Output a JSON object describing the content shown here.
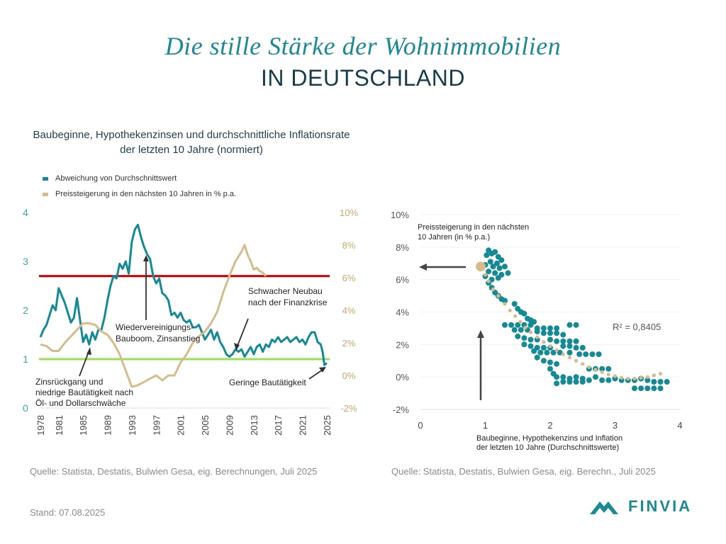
{
  "header": {
    "title": "Die stille Stärke der Wohnimmobilien",
    "subtitle": "IN DEUTSCHLAND"
  },
  "footer": {
    "source_left": "Quelle: Statista, Destatis, Bulwien Gesa, eig. Berechnungen, Juli 2025",
    "source_right": "Quelle: Statista, Destatis, Bulwien Gesa, eig. Berechn., Juli 2025",
    "stand": "Stand: 07.08.2025",
    "logo_text": "FINVIA"
  },
  "colors": {
    "teal": "#138a95",
    "tan": "#d8bb8b",
    "red": "#c00000",
    "green": "#99e05a",
    "dark": "#333333",
    "grid": "#e6e6e6"
  },
  "chart_data": [
    {
      "type": "line",
      "title": "Baubeginne, Hypothekenzinsen und durchschnittliche Inflationsrate der letzten 10 Jahre (normiert)",
      "legend": [
        {
          "name": "Abweichung von Durchschnittswert",
          "color": "#138a95"
        },
        {
          "name": "Preissteigerung in den nächsten 10 Jahren in % p.a.",
          "color": "#d8bb8b"
        }
      ],
      "legend_position": "top-left",
      "x_ticks": [
        "1978",
        "1981",
        "1985",
        "1989",
        "1993",
        "1997",
        "2001",
        "2005",
        "2009",
        "2013",
        "2017",
        "2021",
        "2025"
      ],
      "xlim": [
        1978,
        2025
      ],
      "y_left": {
        "ticks": [
          "0",
          "1",
          "2",
          "3",
          "4"
        ],
        "lim": [
          0,
          4
        ]
      },
      "y_right": {
        "ticks": [
          "-2%",
          "0%",
          "2%",
          "4%",
          "6%",
          "8%",
          "10%"
        ],
        "lim": [
          -2,
          10
        ]
      },
      "reference_lines": [
        {
          "name": "upper-threshold",
          "axis": "left",
          "value": 2.7,
          "color": "#c00000"
        },
        {
          "name": "lower-threshold",
          "axis": "left",
          "value": 1.0,
          "color": "#99e05a"
        }
      ],
      "series": [
        {
          "name": "Abweichung von Durchschnittswert",
          "axis": "left",
          "x": [
            1978.0,
            1978.5,
            1979.0,
            1979.5,
            1980.0,
            1980.5,
            1981.0,
            1981.5,
            1982.0,
            1982.5,
            1983.0,
            1983.5,
            1984.0,
            1984.5,
            1985.0,
            1985.5,
            1986.0,
            1986.5,
            1987.0,
            1987.5,
            1988.0,
            1988.5,
            1989.0,
            1989.5,
            1990.0,
            1990.5,
            1991.0,
            1991.5,
            1992.0,
            1992.5,
            1993.0,
            1993.5,
            1994.0,
            1994.5,
            1995.0,
            1995.5,
            1996.0,
            1996.5,
            1997.0,
            1997.5,
            1998.0,
            1998.5,
            1999.0,
            1999.5,
            2000.0,
            2000.5,
            2001.0,
            2001.5,
            2002.0,
            2002.5,
            2003.0,
            2003.5,
            2004.0,
            2004.5,
            2005.0,
            2005.5,
            2006.0,
            2006.5,
            2007.0,
            2007.5,
            2008.0,
            2008.5,
            2009.0,
            2009.5,
            2010.0,
            2010.5,
            2011.0,
            2011.5,
            2012.0,
            2012.5,
            2013.0,
            2013.5,
            2014.0,
            2014.5,
            2015.0,
            2015.5,
            2016.0,
            2016.5,
            2017.0,
            2017.5,
            2018.0,
            2018.5,
            2019.0,
            2019.5,
            2020.0,
            2020.5,
            2021.0,
            2021.5,
            2022.0,
            2022.5,
            2023.0,
            2023.5,
            2024.0,
            2024.3,
            2024.6,
            2025.0
          ],
          "y": [
            1.45,
            1.6,
            1.7,
            1.9,
            2.1,
            2.0,
            2.45,
            2.3,
            2.15,
            1.95,
            1.75,
            1.85,
            2.25,
            1.8,
            1.35,
            1.5,
            1.3,
            1.55,
            1.4,
            1.6,
            1.6,
            1.85,
            2.2,
            2.5,
            2.7,
            2.65,
            2.95,
            2.85,
            3.0,
            2.75,
            3.4,
            3.65,
            3.75,
            3.5,
            3.3,
            3.15,
            3.05,
            2.7,
            2.55,
            2.65,
            2.35,
            2.3,
            2.2,
            1.9,
            1.95,
            1.85,
            1.95,
            1.8,
            1.75,
            1.8,
            1.65,
            1.65,
            1.7,
            1.55,
            1.4,
            1.5,
            1.6,
            1.4,
            1.55,
            1.35,
            1.25,
            1.1,
            1.05,
            1.1,
            1.2,
            1.15,
            1.2,
            1.05,
            1.15,
            1.25,
            1.1,
            1.25,
            1.3,
            1.15,
            1.3,
            1.25,
            1.4,
            1.35,
            1.45,
            1.35,
            1.4,
            1.45,
            1.35,
            1.4,
            1.45,
            1.35,
            1.4,
            1.3,
            1.45,
            1.55,
            1.55,
            1.35,
            1.3,
            1.15,
            0.88,
            0.92
          ]
        },
        {
          "name": "Preissteigerung in den nächsten 10 Jahren in % p.a.",
          "axis": "right",
          "x": [
            1978.0,
            1979.0,
            1980.0,
            1981.0,
            1982.0,
            1983.0,
            1984.0,
            1985.0,
            1986.0,
            1987.0,
            1988.0,
            1989.0,
            1990.0,
            1991.0,
            1992.0,
            1993.0,
            1994.0,
            1995.0,
            1996.0,
            1997.0,
            1998.0,
            1999.0,
            2000.0,
            2001.0,
            2002.0,
            2003.0,
            2004.0,
            2005.0,
            2006.0,
            2007.0,
            2008.0,
            2009.0,
            2010.0,
            2011.0,
            2011.5,
            2012.0,
            2012.5,
            2013.0,
            2013.5,
            2014.0,
            2014.5,
            2015.0
          ],
          "y": [
            1.9,
            1.8,
            1.5,
            1.5,
            2.0,
            2.4,
            2.8,
            3.2,
            3.2,
            3.1,
            2.7,
            2.5,
            2.0,
            1.3,
            0.3,
            -0.7,
            -0.6,
            -0.4,
            -0.2,
            0.0,
            -0.3,
            0.0,
            0.0,
            0.8,
            1.3,
            2.0,
            2.4,
            2.7,
            3.2,
            3.9,
            5.1,
            6.1,
            7.0,
            7.6,
            8.0,
            7.4,
            7.0,
            6.5,
            6.6,
            6.4,
            6.3,
            6.1
          ]
        }
      ],
      "annotations": [
        {
          "text": "Wiedervereinigungs-\nBauboom, Zinsanstieg",
          "points_to": {
            "x": 1993.8,
            "y": 3.1
          }
        },
        {
          "text": "Zinsrückgang und\nniedrige Bautätigkeit nach\nÖl- und Dollarschwäche",
          "points_to": {
            "x": 1985.3,
            "y": 1.3
          }
        },
        {
          "text": "Schwacher Neubau\nnach der Finanzkrise",
          "points_to": {
            "x": 2009.8,
            "y": 1.15
          }
        },
        {
          "text": "Geringe Bautätigkeit",
          "points_to": {
            "x": 2024.9,
            "y": 0.88
          }
        }
      ],
      "grid": false
    },
    {
      "type": "scatter",
      "xlabel": "Baubeginne, Hypothekenzins und Inflation\nder letzten 10 Jahre (Durchschnittswerte)",
      "ylabel": "",
      "xlim": [
        0,
        4
      ],
      "ylim": [
        -2,
        10
      ],
      "x_ticks": [
        "0",
        "1",
        "2",
        "3",
        "4"
      ],
      "y_ticks": [
        "-2%",
        "0%",
        "2%",
        "4%",
        "6%",
        "8%",
        "10%"
      ],
      "grid": true,
      "r_squared_label": "R² = 0,8405",
      "annotations": [
        {
          "text": "Preissteigerung in den nächsten\n10 Jahren (in % p.a.)",
          "arrow": "left",
          "at_y": 6.8
        },
        {
          "text": "",
          "arrow": "up",
          "at_x": 0.93
        }
      ],
      "highlight_point": {
        "x": 0.93,
        "y": 6.8
      },
      "series": [
        {
          "name": "Beobachtungen",
          "color": "#138a95",
          "points": [
            [
              1.05,
              7.8
            ],
            [
              1.1,
              7.6
            ],
            [
              1.02,
              7.5
            ],
            [
              1.15,
              7.7
            ],
            [
              1.2,
              7.4
            ],
            [
              1.08,
              7.1
            ],
            [
              1.18,
              7.0
            ],
            [
              1.25,
              7.2
            ],
            [
              1.0,
              6.9
            ],
            [
              1.12,
              6.8
            ],
            [
              1.22,
              6.7
            ],
            [
              1.3,
              6.8
            ],
            [
              1.05,
              6.5
            ],
            [
              1.15,
              6.4
            ],
            [
              1.25,
              6.3
            ],
            [
              1.35,
              6.4
            ],
            [
              1.0,
              6.2
            ],
            [
              1.1,
              6.0
            ],
            [
              1.2,
              6.1
            ],
            [
              1.05,
              5.8
            ],
            [
              1.1,
              5.5
            ],
            [
              1.15,
              5.2
            ],
            [
              1.2,
              5.0
            ],
            [
              1.25,
              4.8
            ],
            [
              1.3,
              4.7
            ],
            [
              1.45,
              4.5
            ],
            [
              1.5,
              4.2
            ],
            [
              1.55,
              4.0
            ],
            [
              1.6,
              3.9
            ],
            [
              1.65,
              3.6
            ],
            [
              1.7,
              3.5
            ],
            [
              1.75,
              3.4
            ],
            [
              1.3,
              3.2
            ],
            [
              1.4,
              3.2
            ],
            [
              1.5,
              3.2
            ],
            [
              1.6,
              3.2
            ],
            [
              1.7,
              3.2
            ],
            [
              2.3,
              3.2
            ],
            [
              2.4,
              3.2
            ],
            [
              1.8,
              3.0
            ],
            [
              1.9,
              3.0
            ],
            [
              2.0,
              3.0
            ],
            [
              2.1,
              3.0
            ],
            [
              1.45,
              2.9
            ],
            [
              1.55,
              2.9
            ],
            [
              1.65,
              2.9
            ],
            [
              1.8,
              2.8
            ],
            [
              1.9,
              2.7
            ],
            [
              2.0,
              2.7
            ],
            [
              2.1,
              2.7
            ],
            [
              2.2,
              2.6
            ],
            [
              1.5,
              2.5
            ],
            [
              1.6,
              2.4
            ],
            [
              1.7,
              2.3
            ],
            [
              1.8,
              2.3
            ],
            [
              2.0,
              2.3
            ],
            [
              2.1,
              2.2
            ],
            [
              2.2,
              2.2
            ],
            [
              2.3,
              2.2
            ],
            [
              2.4,
              2.2
            ],
            [
              1.6,
              2.0
            ],
            [
              1.7,
              1.9
            ],
            [
              1.8,
              1.8
            ],
            [
              1.9,
              1.8
            ],
            [
              2.0,
              1.8
            ],
            [
              2.2,
              1.9
            ],
            [
              2.3,
              1.9
            ],
            [
              2.4,
              1.8
            ],
            [
              2.5,
              1.8
            ],
            [
              1.75,
              1.6
            ],
            [
              1.85,
              1.5
            ],
            [
              1.95,
              1.5
            ],
            [
              2.05,
              1.5
            ],
            [
              2.15,
              1.5
            ],
            [
              2.3,
              1.5
            ],
            [
              2.45,
              1.4
            ],
            [
              2.55,
              1.4
            ],
            [
              2.65,
              1.4
            ],
            [
              2.75,
              1.4
            ],
            [
              1.8,
              1.2
            ],
            [
              1.9,
              1.0
            ],
            [
              2.0,
              0.9
            ],
            [
              2.1,
              0.8
            ],
            [
              2.0,
              0.5
            ],
            [
              2.05,
              0.2
            ],
            [
              2.1,
              0.0
            ],
            [
              2.2,
              0.0
            ],
            [
              2.3,
              -0.1
            ],
            [
              2.4,
              0.0
            ],
            [
              2.5,
              -0.1
            ],
            [
              2.6,
              -0.2
            ],
            [
              2.5,
              -0.3
            ],
            [
              2.4,
              -0.3
            ],
            [
              2.3,
              -0.3
            ],
            [
              2.2,
              -0.3
            ],
            [
              2.1,
              -0.4
            ],
            [
              2.6,
              0.5
            ],
            [
              2.7,
              0.5
            ],
            [
              2.8,
              0.5
            ],
            [
              2.9,
              0.5
            ],
            [
              3.0,
              -0.1
            ],
            [
              3.1,
              -0.2
            ],
            [
              3.2,
              -0.2
            ],
            [
              3.3,
              -0.2
            ],
            [
              3.4,
              -0.1
            ],
            [
              3.5,
              -0.2
            ],
            [
              3.6,
              -0.3
            ],
            [
              3.7,
              -0.3
            ],
            [
              3.8,
              -0.3
            ],
            [
              3.3,
              -0.7
            ],
            [
              3.4,
              -0.7
            ],
            [
              3.5,
              -0.7
            ],
            [
              3.6,
              -0.7
            ],
            [
              3.7,
              -0.7
            ],
            [
              2.8,
              -0.2
            ],
            [
              2.9,
              -0.2
            ],
            [
              2.7,
              0.0
            ]
          ]
        },
        {
          "name": "Trend",
          "color": "#d8bb8b",
          "points": [
            [
              1.0,
              6.3
            ],
            [
              1.05,
              5.9
            ],
            [
              1.12,
              5.4
            ],
            [
              1.2,
              5.0
            ],
            [
              1.3,
              4.5
            ],
            [
              1.38,
              4.1
            ],
            [
              1.46,
              3.75
            ],
            [
              1.54,
              3.4
            ],
            [
              1.62,
              3.05
            ],
            [
              1.7,
              2.75
            ],
            [
              1.8,
              2.45
            ],
            [
              1.9,
              2.15
            ],
            [
              2.0,
              1.9
            ],
            [
              2.1,
              1.65
            ],
            [
              2.2,
              1.4
            ],
            [
              2.3,
              1.2
            ],
            [
              2.4,
              1.0
            ],
            [
              2.5,
              0.8
            ],
            [
              2.6,
              0.6
            ],
            [
              2.7,
              0.45
            ],
            [
              2.8,
              0.3
            ],
            [
              2.9,
              0.15
            ],
            [
              3.0,
              0.05
            ],
            [
              3.1,
              -0.05
            ],
            [
              3.2,
              -0.1
            ],
            [
              3.3,
              -0.1
            ],
            [
              3.4,
              -0.05
            ],
            [
              3.5,
              0.0
            ],
            [
              3.6,
              0.1
            ],
            [
              3.7,
              0.2
            ]
          ]
        }
      ]
    }
  ]
}
